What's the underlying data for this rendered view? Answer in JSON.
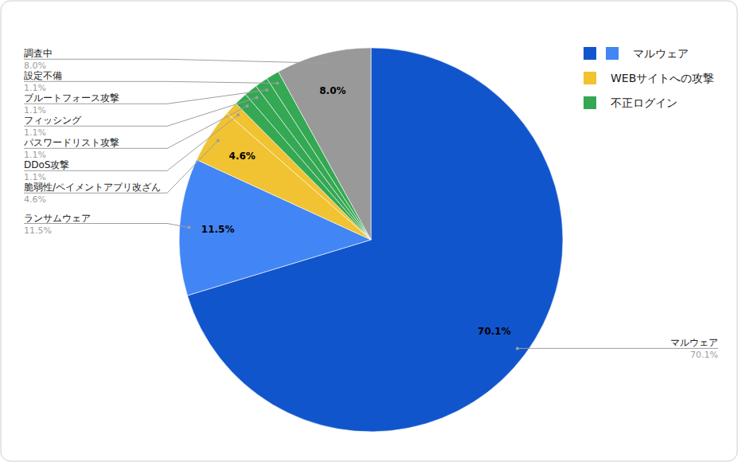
{
  "chart_data": {
    "type": "pie",
    "categories": [
      "マルウェア",
      "ランサムウェア",
      "脆弱性/ペイメントアプリ改ざん",
      "DDoS攻撃",
      "パスワードリスト攻撃",
      "フィッシング",
      "ブルートフォース攻撃",
      "設定不備",
      "調査中"
    ],
    "values": [
      70.1,
      11.5,
      4.6,
      1.1,
      1.1,
      1.1,
      1.1,
      1.1,
      8.0
    ],
    "value_labels": [
      "70.1%",
      "11.5%",
      "4.6%",
      "1.1%",
      "1.1%",
      "1.1%",
      "1.1%",
      "1.1%",
      "8.0%"
    ],
    "colors": [
      "#1155cc",
      "#4285f4",
      "#f1c232",
      "#f1c232",
      "#34a853",
      "#34a853",
      "#34a853",
      "#34a853",
      "#999999"
    ],
    "data_labels": true,
    "legend": "top-right",
    "groups": [
      {
        "name": "マルウェア",
        "colors": [
          "#1155cc",
          "#4285f4"
        ]
      },
      {
        "name": "WEBサイトへの攻撃",
        "colors": [
          "#f1c232"
        ]
      },
      {
        "name": "不正ログイン",
        "colors": [
          "#34a853"
        ]
      }
    ]
  }
}
